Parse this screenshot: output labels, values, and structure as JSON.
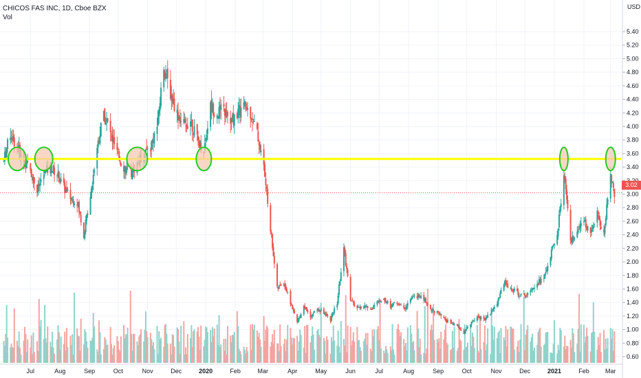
{
  "legend": {
    "symbol": "CHICOS FAS INC, 1D, Cboe BZX",
    "volume_label": "Vol"
  },
  "currency_label": "USD",
  "last_price_label": "3.02",
  "colors": {
    "up": "#26a69a",
    "down": "#ef5350",
    "vol_up": "#8fd3cb",
    "vol_down": "#f5a3a1",
    "resistance": "#ffff00",
    "marker_fill": "#f7c9b3",
    "marker_stroke": "#22cc22"
  },
  "chart_data": {
    "type": "candlestick",
    "title": "CHICOS FAS INC, 1D, Cboe BZX",
    "ylabel": "USD",
    "ylim": [
      0.5,
      5.5
    ],
    "y_ticks": [
      "5.40",
      "5.20",
      "5.00",
      "4.80",
      "4.60",
      "4.40",
      "4.20",
      "4.00",
      "3.80",
      "3.60",
      "3.40",
      "3.20",
      "3.00",
      "2.80",
      "2.60",
      "2.40",
      "2.20",
      "2.00",
      "1.80",
      "1.60",
      "1.40",
      "1.20",
      "1.00",
      "0.80",
      "0.60"
    ],
    "x_ticks": [
      "Jul",
      "Aug",
      "Sep",
      "Oct",
      "Nov",
      "Dec",
      "2020",
      "Feb",
      "Mar",
      "Apr",
      "May",
      "Jun",
      "Jul",
      "Aug",
      "Sep",
      "Oct",
      "Nov",
      "Dec",
      "2021",
      "Feb",
      "Mar"
    ],
    "last_price": 3.02,
    "resistance_level": 3.52,
    "grid": true,
    "price_path": [
      [
        "2019-06-03",
        3.5
      ],
      [
        "2019-06-10",
        3.9
      ],
      [
        "2019-06-17",
        3.7
      ],
      [
        "2019-06-24",
        3.5
      ],
      [
        "2019-07-01",
        3.35
      ],
      [
        "2019-07-08",
        3.05
      ],
      [
        "2019-07-15",
        3.3
      ],
      [
        "2019-07-22",
        3.4
      ],
      [
        "2019-07-29",
        3.3
      ],
      [
        "2019-08-05",
        3.1
      ],
      [
        "2019-08-12",
        2.95
      ],
      [
        "2019-08-19",
        2.9
      ],
      [
        "2019-08-26",
        2.4
      ],
      [
        "2019-09-02",
        3.0
      ],
      [
        "2019-09-09",
        3.7
      ],
      [
        "2019-09-16",
        4.2
      ],
      [
        "2019-09-23",
        3.9
      ],
      [
        "2019-09-30",
        3.6
      ],
      [
        "2019-10-07",
        3.4
      ],
      [
        "2019-10-14",
        3.3
      ],
      [
        "2019-10-21",
        3.45
      ],
      [
        "2019-10-28",
        3.6
      ],
      [
        "2019-11-04",
        3.7
      ],
      [
        "2019-11-11",
        4.0
      ],
      [
        "2019-11-18",
        4.9
      ],
      [
        "2019-11-25",
        4.5
      ],
      [
        "2019-12-02",
        4.2
      ],
      [
        "2019-12-09",
        4.0
      ],
      [
        "2019-12-16",
        4.1
      ],
      [
        "2019-12-23",
        3.8
      ],
      [
        "2019-12-30",
        3.65
      ],
      [
        "2020-01-06",
        4.3
      ],
      [
        "2020-01-13",
        4.2
      ],
      [
        "2020-01-20",
        4.25
      ],
      [
        "2020-01-27",
        4.05
      ],
      [
        "2020-02-03",
        4.2
      ],
      [
        "2020-02-10",
        4.3
      ],
      [
        "2020-02-17",
        4.2
      ],
      [
        "2020-02-24",
        3.9
      ],
      [
        "2020-03-02",
        3.4
      ],
      [
        "2020-03-09",
        2.5
      ],
      [
        "2020-03-16",
        1.6
      ],
      [
        "2020-03-23",
        1.7
      ],
      [
        "2020-03-30",
        1.4
      ],
      [
        "2020-04-06",
        1.1
      ],
      [
        "2020-04-13",
        1.35
      ],
      [
        "2020-04-20",
        1.2
      ],
      [
        "2020-04-27",
        1.3
      ],
      [
        "2020-05-04",
        1.25
      ],
      [
        "2020-05-11",
        1.15
      ],
      [
        "2020-05-18",
        1.4
      ],
      [
        "2020-05-25",
        2.2
      ],
      [
        "2020-06-01",
        1.45
      ],
      [
        "2020-06-08",
        1.3
      ],
      [
        "2020-06-15",
        1.35
      ],
      [
        "2020-06-22",
        1.3
      ],
      [
        "2020-06-29",
        1.4
      ],
      [
        "2020-07-06",
        1.45
      ],
      [
        "2020-07-13",
        1.35
      ],
      [
        "2020-07-20",
        1.4
      ],
      [
        "2020-07-27",
        1.3
      ],
      [
        "2020-08-03",
        1.45
      ],
      [
        "2020-08-10",
        1.5
      ],
      [
        "2020-08-17",
        1.45
      ],
      [
        "2020-08-24",
        1.3
      ],
      [
        "2020-08-31",
        1.25
      ],
      [
        "2020-09-07",
        1.15
      ],
      [
        "2020-09-14",
        1.1
      ],
      [
        "2020-09-21",
        1.05
      ],
      [
        "2020-09-28",
        0.95
      ],
      [
        "2020-10-05",
        1.1
      ],
      [
        "2020-10-12",
        1.2
      ],
      [
        "2020-10-19",
        1.15
      ],
      [
        "2020-10-26",
        1.25
      ],
      [
        "2020-11-02",
        1.4
      ],
      [
        "2020-11-09",
        1.7
      ],
      [
        "2020-11-16",
        1.6
      ],
      [
        "2020-11-23",
        1.55
      ],
      [
        "2020-11-30",
        1.5
      ],
      [
        "2020-12-07",
        1.6
      ],
      [
        "2020-12-14",
        1.7
      ],
      [
        "2020-12-21",
        1.75
      ],
      [
        "2020-12-28",
        2.1
      ],
      [
        "2021-01-04",
        2.4
      ],
      [
        "2021-01-11",
        3.3
      ],
      [
        "2021-01-18",
        2.3
      ],
      [
        "2021-01-25",
        2.4
      ],
      [
        "2021-02-01",
        2.6
      ],
      [
        "2021-02-08",
        2.45
      ],
      [
        "2021-02-15",
        2.7
      ],
      [
        "2021-02-22",
        2.4
      ],
      [
        "2021-03-01",
        3.3
      ],
      [
        "2021-03-05",
        3.02
      ]
    ],
    "highlighted_touches": [
      "2019-06-17",
      "2019-07-15",
      "2019-10-21",
      "2019-12-30",
      "2021-01-11",
      "2021-03-01"
    ]
  }
}
